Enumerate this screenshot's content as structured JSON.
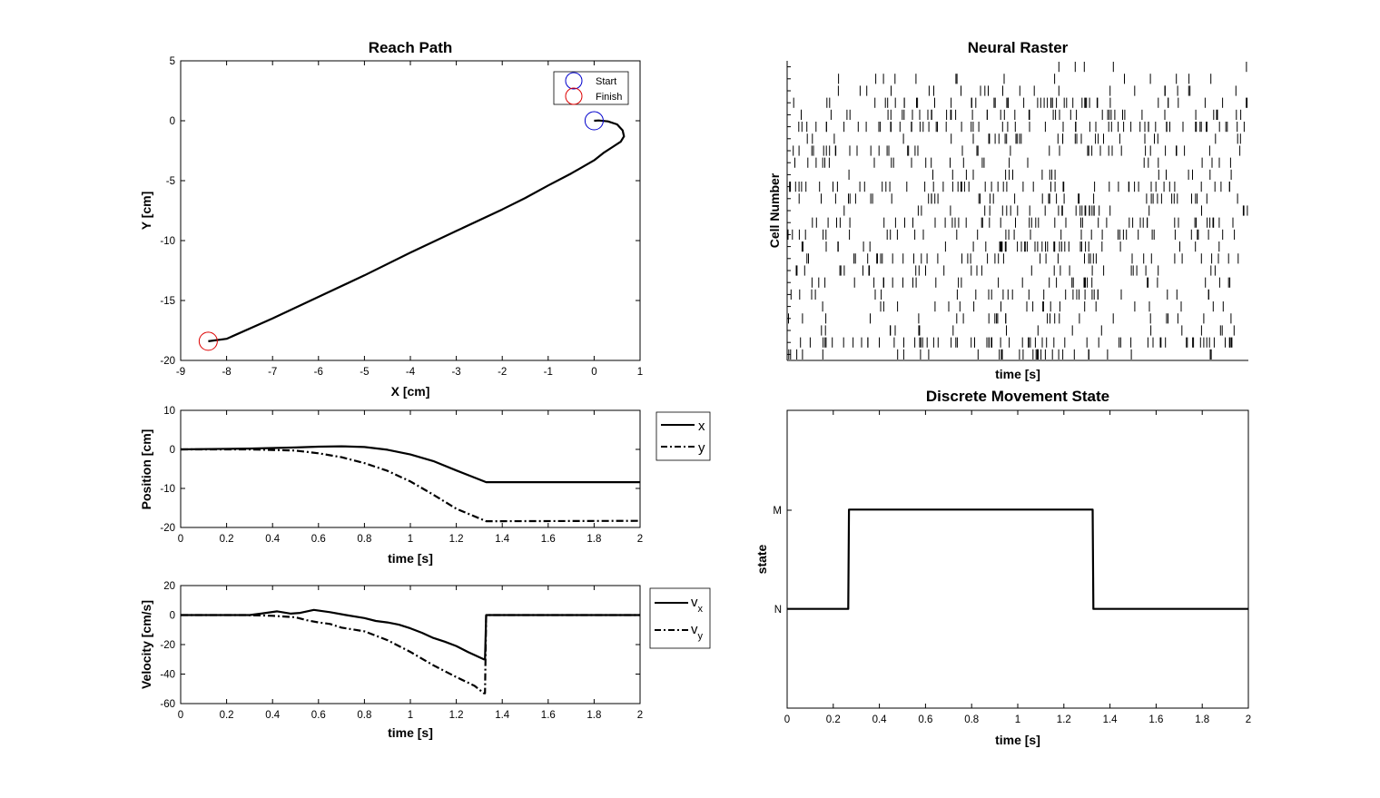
{
  "chart_data": [
    {
      "id": "reach",
      "type": "line",
      "title": "Reach Path",
      "xlabel": "X [cm]",
      "ylabel": "Y [cm]",
      "xlim": [
        -9,
        1
      ],
      "ylim": [
        -20,
        5
      ],
      "xticks": [
        "-9",
        "-8",
        "-7",
        "-6",
        "-5",
        "-4",
        "-3",
        "-2",
        "-1",
        "0",
        "1"
      ],
      "yticks": [
        "5",
        "0",
        "-5",
        "-10",
        "-15",
        "-20"
      ],
      "legend": {
        "placement": "top-right",
        "entries": [
          "Start",
          "Finish"
        ]
      },
      "series": [
        {
          "name": "path",
          "x": [
            0,
            0.1,
            0.3,
            0.5,
            0.62,
            0.65,
            0.58,
            0.4,
            0.2,
            0,
            -0.5,
            -1,
            -1.5,
            -2,
            -3,
            -4,
            -5,
            -6,
            -7,
            -8,
            -8.4
          ],
          "y": [
            0,
            0.02,
            -0.05,
            -0.3,
            -0.8,
            -1.3,
            -1.75,
            -2.2,
            -2.7,
            -3.3,
            -4.4,
            -5.4,
            -6.45,
            -7.4,
            -9.2,
            -11.0,
            -12.9,
            -14.7,
            -16.5,
            -18.2,
            -18.4
          ]
        },
        {
          "name": "Start",
          "x": [
            0
          ],
          "y": [
            0
          ]
        },
        {
          "name": "Finish",
          "x": [
            -8.4
          ],
          "y": [
            -18.4
          ]
        }
      ]
    },
    {
      "id": "raster",
      "type": "scatter",
      "title": "Neural Raster",
      "xlabel": "time [s]",
      "ylabel": "Cell Number",
      "xlim": [
        0,
        2
      ],
      "cells": 25,
      "cell_rates": [
        3,
        8,
        12,
        28,
        25,
        34,
        18,
        22,
        14,
        10,
        30,
        22,
        18,
        26,
        20,
        24,
        22,
        16,
        18,
        16,
        12,
        14,
        10,
        38,
        18
      ]
    },
    {
      "id": "position",
      "type": "line",
      "ylabel": "Position [cm]",
      "xlabel": "time [s]",
      "xlim": [
        0,
        2
      ],
      "ylim": [
        -20,
        10
      ],
      "xticks": [
        "0",
        "0.2",
        "0.4",
        "0.6",
        "0.8",
        "1",
        "1.2",
        "1.4",
        "1.6",
        "1.8",
        "2"
      ],
      "yticks": [
        "10",
        "0",
        "-10",
        "-20"
      ],
      "legend": {
        "placement": "outside-right",
        "entries": [
          "x",
          "y"
        ]
      },
      "series": [
        {
          "name": "x",
          "x": [
            0,
            0.3,
            0.5,
            0.6,
            0.7,
            0.8,
            0.9,
            1.0,
            1.1,
            1.2,
            1.33,
            1.4,
            2.0
          ],
          "y": [
            0,
            0.2,
            0.5,
            0.7,
            0.8,
            0.6,
            -0.1,
            -1.3,
            -3.0,
            -5.4,
            -8.4,
            -8.4,
            -8.4
          ]
        },
        {
          "name": "y",
          "x": [
            0,
            0.3,
            0.5,
            0.6,
            0.7,
            0.8,
            0.9,
            1.0,
            1.1,
            1.2,
            1.33,
            1.4,
            2.0
          ],
          "y": [
            0,
            0,
            -0.3,
            -1,
            -2,
            -3.5,
            -5.5,
            -8.2,
            -11.6,
            -15.2,
            -18.4,
            -18.4,
            -18.3
          ]
        }
      ]
    },
    {
      "id": "velocity",
      "type": "line",
      "ylabel": "Velocity [cm/s]",
      "xlabel": "time [s]",
      "xlim": [
        0,
        2
      ],
      "ylim": [
        -60,
        20
      ],
      "xticks": [
        "0",
        "0.2",
        "0.4",
        "0.6",
        "0.8",
        "1",
        "1.2",
        "1.4",
        "1.6",
        "1.8",
        "2"
      ],
      "yticks": [
        "20",
        "0",
        "-20",
        "-40",
        "-60"
      ],
      "legend": {
        "placement": "outside-right",
        "entries": [
          {
            "base": "v",
            "sub": "x"
          },
          {
            "base": "v",
            "sub": "y"
          }
        ]
      },
      "series": [
        {
          "name": "vx",
          "x": [
            0,
            0.3,
            0.35,
            0.42,
            0.48,
            0.52,
            0.58,
            0.65,
            0.72,
            0.8,
            0.85,
            0.9,
            0.95,
            1.0,
            1.05,
            1.1,
            1.15,
            1.2,
            1.25,
            1.32,
            1.325,
            1.33,
            1.4,
            2.0
          ],
          "y": [
            0,
            0,
            1,
            2.5,
            1,
            1.5,
            3.5,
            2,
            0,
            -2,
            -4,
            -5,
            -6.5,
            -9,
            -12,
            -15.5,
            -18,
            -21,
            -25,
            -30,
            -30,
            0,
            0,
            0
          ]
        },
        {
          "name": "vy",
          "x": [
            0,
            0.28,
            0.4,
            0.5,
            0.55,
            0.6,
            0.65,
            0.7,
            0.8,
            0.9,
            1.0,
            1.1,
            1.2,
            1.28,
            1.32,
            1.325,
            1.33,
            1.4,
            2.0
          ],
          "y": [
            0,
            0,
            -0.5,
            -1.5,
            -3.5,
            -5,
            -6,
            -8.5,
            -11,
            -17,
            -25,
            -34,
            -42,
            -48,
            -53,
            -53,
            0,
            0,
            0
          ]
        }
      ]
    },
    {
      "id": "state",
      "type": "line",
      "title": "Discrete Movement State",
      "ylabel": "state",
      "xlabel": "time [s]",
      "xlim": [
        0,
        2
      ],
      "ylim": [
        0,
        3
      ],
      "xticks": [
        "0",
        "0.2",
        "0.4",
        "0.6",
        "0.8",
        "1",
        "1.2",
        "1.4",
        "1.6",
        "1.8",
        "2"
      ],
      "ytick_labels": [
        "M",
        "N"
      ],
      "series": [
        {
          "name": "state",
          "x": [
            0,
            0.265,
            0.268,
            1.325,
            1.328,
            2.0
          ],
          "y": [
            1,
            1,
            2,
            2,
            1,
            1
          ]
        }
      ]
    }
  ]
}
